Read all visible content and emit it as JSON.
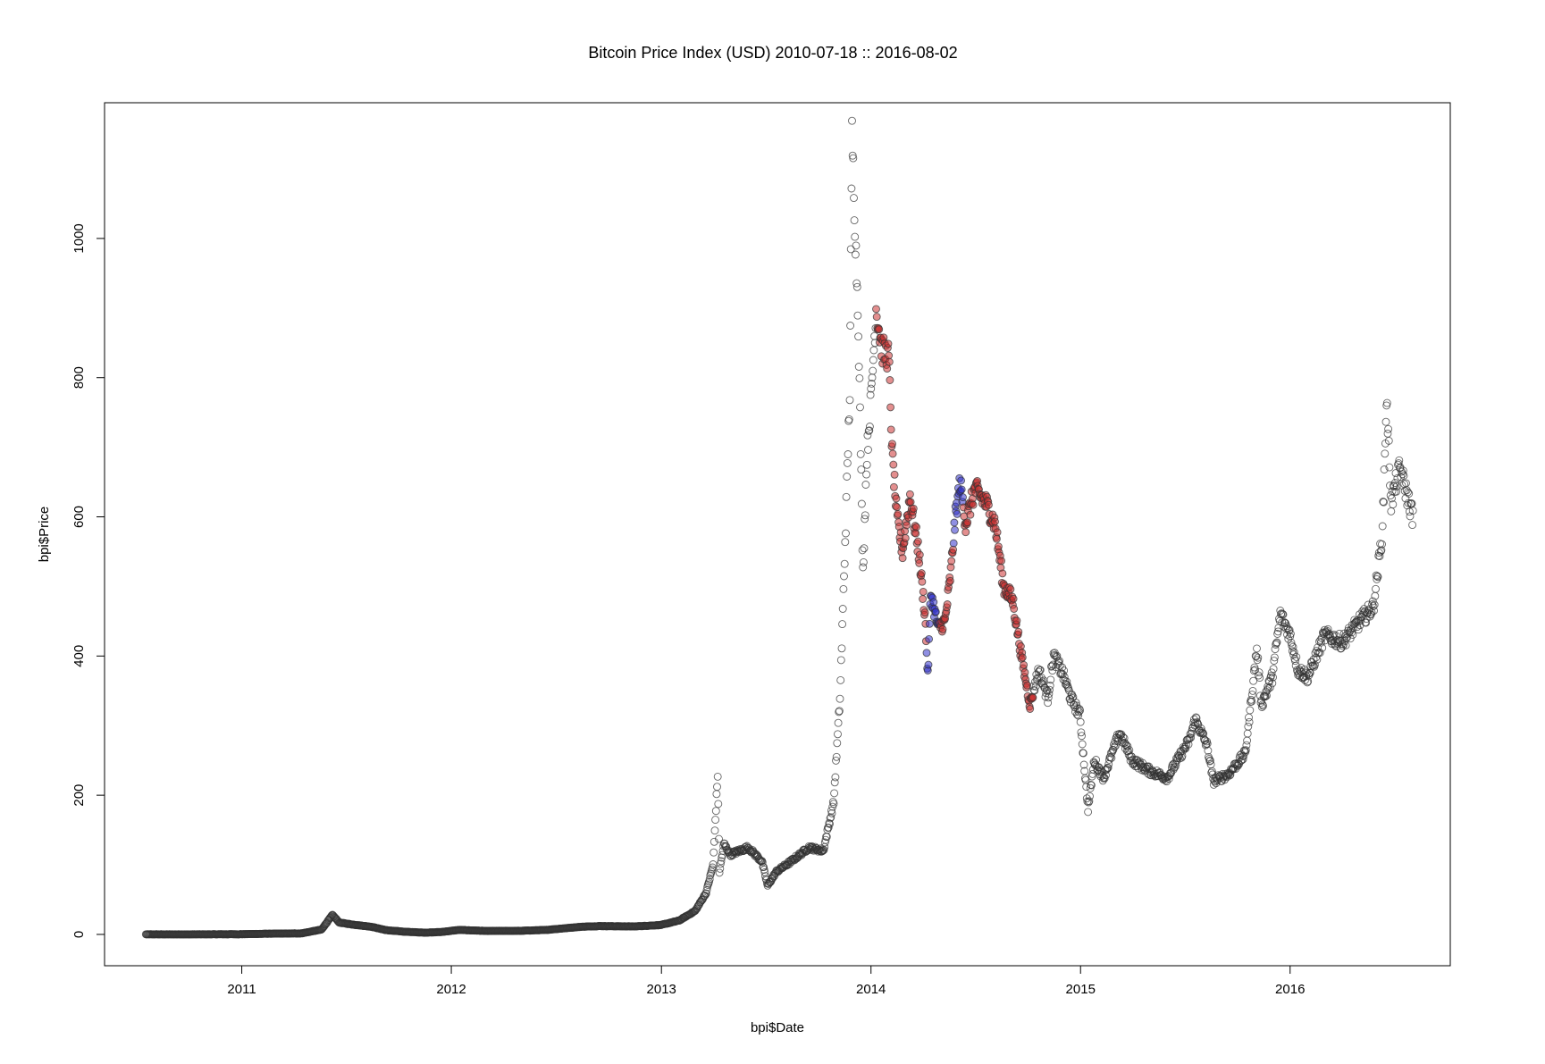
{
  "chart_data": {
    "type": "scatter",
    "title": "Bitcoin Price Index (USD) 2010-07-18 :: 2016-08-02",
    "xlabel": "bpi$Date",
    "ylabel": "bpi$Price",
    "x_range": [
      "2010-07-18",
      "2016-08-02"
    ],
    "ylim": [
      -45,
      1195
    ],
    "x_ticks": [
      "2011",
      "2012",
      "2013",
      "2014",
      "2015",
      "2016"
    ],
    "y_ticks": [
      0,
      200,
      400,
      600,
      800,
      1000
    ],
    "grid": false,
    "legend": "none",
    "colors": {
      "default": "#333333",
      "red_highlight": "#cc3333",
      "blue_highlight": "#3333cc"
    },
    "price_curve": [
      [
        "2010-07-18",
        0.09
      ],
      [
        "2010-10-01",
        0.06
      ],
      [
        "2011-01-01",
        0.3
      ],
      [
        "2011-02-15",
        1.0
      ],
      [
        "2011-04-15",
        1.5
      ],
      [
        "2011-05-20",
        7
      ],
      [
        "2011-06-08",
        28
      ],
      [
        "2011-06-20",
        17
      ],
      [
        "2011-07-15",
        14
      ],
      [
        "2011-08-15",
        11
      ],
      [
        "2011-09-10",
        6
      ],
      [
        "2011-10-10",
        4
      ],
      [
        "2011-11-15",
        2.5
      ],
      [
        "2011-12-15",
        3.5
      ],
      [
        "2012-01-15",
        6.5
      ],
      [
        "2012-03-01",
        5
      ],
      [
        "2012-05-01",
        5.2
      ],
      [
        "2012-06-15",
        6.5
      ],
      [
        "2012-08-15",
        11
      ],
      [
        "2012-09-15",
        12
      ],
      [
        "2012-11-15",
        11.5
      ],
      [
        "2012-12-31",
        13.5
      ],
      [
        "2013-02-01",
        20
      ],
      [
        "2013-03-01",
        34
      ],
      [
        "2013-03-20",
        60
      ],
      [
        "2013-04-01",
        100
      ],
      [
        "2013-04-09",
        230
      ],
      [
        "2013-04-12",
        90
      ],
      [
        "2013-04-20",
        130
      ],
      [
        "2013-05-01",
        115
      ],
      [
        "2013-06-01",
        125
      ],
      [
        "2013-06-25",
        105
      ],
      [
        "2013-07-05",
        70
      ],
      [
        "2013-07-20",
        90
      ],
      [
        "2013-08-15",
        105
      ],
      [
        "2013-09-15",
        125
      ],
      [
        "2013-10-10",
        120
      ],
      [
        "2013-10-28",
        190
      ],
      [
        "2013-11-08",
        340
      ],
      [
        "2013-11-18",
        590
      ],
      [
        "2013-11-25",
        780
      ],
      [
        "2013-11-29",
        1150
      ],
      [
        "2013-12-05",
        1000
      ],
      [
        "2013-12-10",
        880
      ],
      [
        "2013-12-18",
        520
      ],
      [
        "2013-12-25",
        690
      ],
      [
        "2014-01-01",
        770
      ],
      [
        "2014-01-10",
        900
      ],
      [
        "2014-01-20",
        840
      ],
      [
        "2014-02-01",
        830
      ],
      [
        "2014-02-07",
        690
      ],
      [
        "2014-02-15",
        600
      ],
      [
        "2014-02-25",
        550
      ],
      [
        "2014-03-10",
        630
      ],
      [
        "2014-03-25",
        550
      ],
      [
        "2014-04-05",
        460
      ],
      [
        "2014-04-10",
        370
      ],
      [
        "2014-04-15",
        490
      ],
      [
        "2014-04-28",
        440
      ],
      [
        "2014-05-10",
        450
      ],
      [
        "2014-05-20",
        520
      ],
      [
        "2014-05-28",
        600
      ],
      [
        "2014-06-05",
        650
      ],
      [
        "2014-06-15",
        590
      ],
      [
        "2014-07-01",
        640
      ],
      [
        "2014-07-20",
        620
      ],
      [
        "2014-08-05",
        590
      ],
      [
        "2014-08-20",
        500
      ],
      [
        "2014-09-05",
        480
      ],
      [
        "2014-09-20",
        400
      ],
      [
        "2014-10-05",
        330
      ],
      [
        "2014-10-20",
        380
      ],
      [
        "2014-11-05",
        340
      ],
      [
        "2014-11-15",
        400
      ],
      [
        "2014-12-01",
        375
      ],
      [
        "2014-12-15",
        340
      ],
      [
        "2014-12-31",
        315
      ],
      [
        "2015-01-14",
        180
      ],
      [
        "2015-01-25",
        250
      ],
      [
        "2015-02-10",
        225
      ],
      [
        "2015-03-10",
        290
      ],
      [
        "2015-04-01",
        250
      ],
      [
        "2015-05-01",
        235
      ],
      [
        "2015-06-01",
        225
      ],
      [
        "2015-07-10",
        280
      ],
      [
        "2015-07-20",
        310
      ],
      [
        "2015-08-10",
        270
      ],
      [
        "2015-08-20",
        220
      ],
      [
        "2015-09-15",
        230
      ],
      [
        "2015-10-15",
        260
      ],
      [
        "2015-11-04",
        410
      ],
      [
        "2015-11-12",
        330
      ],
      [
        "2015-12-01",
        370
      ],
      [
        "2015-12-15",
        460
      ],
      [
        "2016-01-01",
        430
      ],
      [
        "2016-01-15",
        380
      ],
      [
        "2016-02-01",
        370
      ],
      [
        "2016-03-01",
        430
      ],
      [
        "2016-04-01",
        420
      ],
      [
        "2016-05-01",
        450
      ],
      [
        "2016-05-25",
        470
      ],
      [
        "2016-06-10",
        580
      ],
      [
        "2016-06-17",
        770
      ],
      [
        "2016-06-25",
        620
      ],
      [
        "2016-07-10",
        670
      ],
      [
        "2016-08-02",
        600
      ]
    ],
    "highlighted": {
      "red_range": [
        "2014-01-10",
        "2014-10-10"
      ],
      "blue_ranges": [
        [
          "2014-04-08",
          "2014-04-30"
        ],
        [
          "2014-05-25",
          "2014-06-10"
        ]
      ]
    }
  }
}
